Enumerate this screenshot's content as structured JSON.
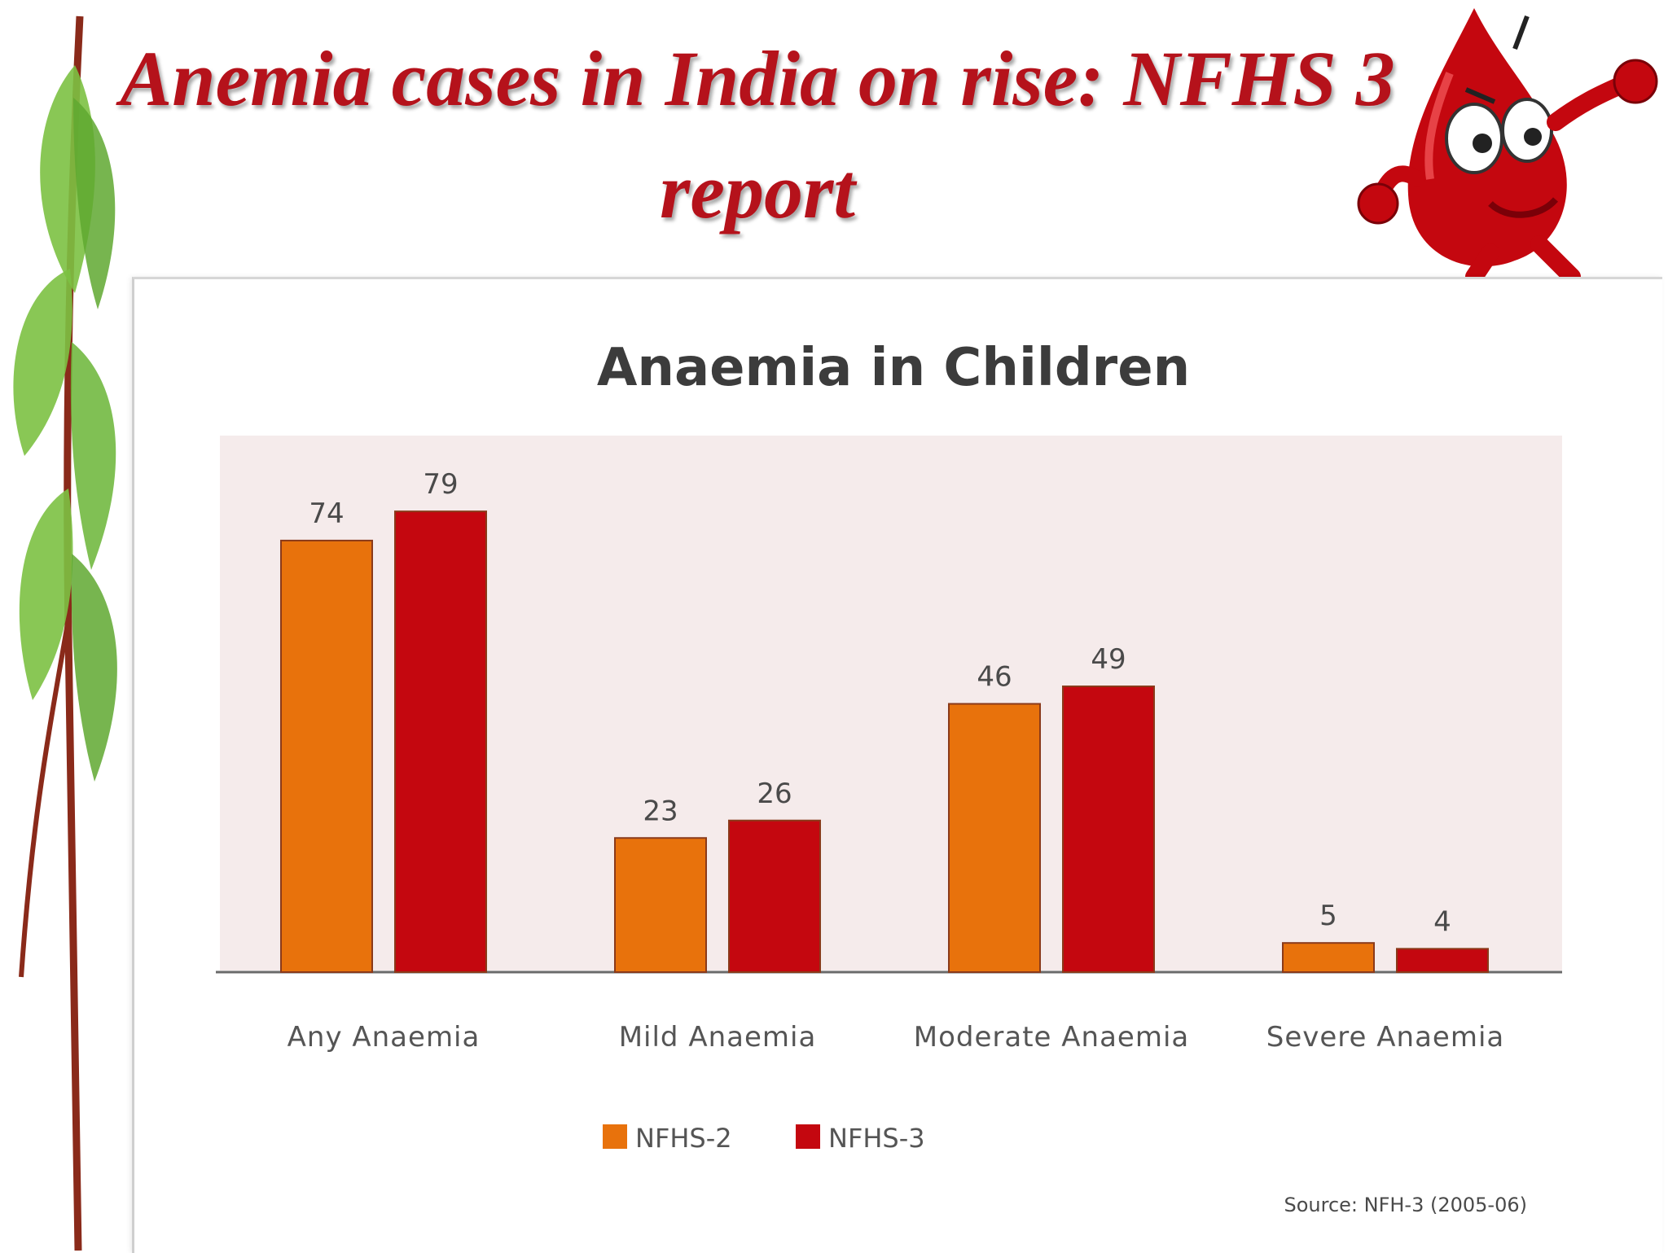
{
  "slide": {
    "title_line1": "Anemia cases in India on rise: NFHS 3",
    "title_line2": "report"
  },
  "colors": {
    "title": "#b5121b",
    "plot_background": "#f5ebeb",
    "nfhs2": "#e8720c",
    "nfhs3": "#c4070f",
    "leaf": "#7cc142",
    "stem": "#8a2a1a"
  },
  "chart_data": {
    "type": "bar",
    "title": "Anaemia in Children",
    "categories": [
      "Any Anaemia",
      "Mild Anaemia",
      "Moderate Anaemia",
      "Severe Anaemia"
    ],
    "series": [
      {
        "name": "NFHS-2",
        "values": [
          74,
          23,
          46,
          5
        ]
      },
      {
        "name": "NFHS-3",
        "values": [
          79,
          26,
          49,
          4
        ]
      }
    ],
    "ylim": [
      0,
      92
    ],
    "grid": false,
    "legend": "bottom",
    "source": "Source: NFH-3 (2005-06)"
  }
}
